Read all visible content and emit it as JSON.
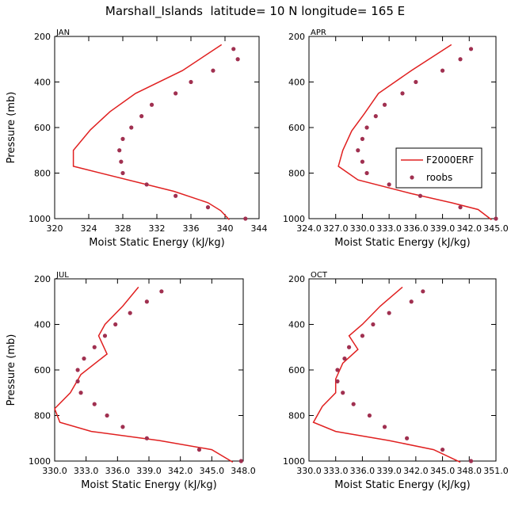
{
  "title": "Marshall_Islands  latitude= 10 N longitude= 165 E",
  "legend": {
    "model": "F2000ERF",
    "obs": "roobs"
  },
  "colors": {
    "line": "#e02020",
    "dots": "#a03050",
    "axis": "#000000"
  },
  "chart_data": [
    {
      "type": "line",
      "month": "JAN",
      "xlabel": "Moist Static Energy (kJ/kg)",
      "ylabel": "Pressure (mb)",
      "xlim": [
        320,
        344
      ],
      "ylim": [
        1000,
        200
      ],
      "xticks": [
        320,
        324,
        328,
        332,
        336,
        340,
        344
      ],
      "xtick_labels": [
        "320",
        "324",
        "328",
        "332",
        "336",
        "340",
        "344"
      ],
      "yticks": [
        200,
        400,
        600,
        800,
        1000
      ],
      "ytick_labels": [
        "200",
        "400",
        "600",
        "800",
        "1000"
      ],
      "series": [
        {
          "name": "F2000ERF",
          "points": [
            [
              339.6,
              236
            ],
            [
              335.0,
              350
            ],
            [
              329.5,
              450
            ],
            [
              326.5,
              530
            ],
            [
              324.2,
              610
            ],
            [
              322.2,
              700
            ],
            [
              322.2,
              770
            ],
            [
              334.0,
              880
            ],
            [
              338.0,
              930
            ],
            [
              339.5,
              965
            ],
            [
              340.5,
              1005
            ]
          ]
        },
        {
          "name": "roobs",
          "points": [
            [
              341.0,
              255
            ],
            [
              341.5,
              300
            ],
            [
              338.6,
              350
            ],
            [
              336.0,
              400
            ],
            [
              334.2,
              450
            ],
            [
              331.4,
              500
            ],
            [
              330.2,
              550
            ],
            [
              329.0,
              600
            ],
            [
              328.0,
              650
            ],
            [
              327.6,
              700
            ],
            [
              327.8,
              750
            ],
            [
              328.0,
              800
            ],
            [
              330.8,
              850
            ],
            [
              334.2,
              900
            ],
            [
              338.0,
              950
            ],
            [
              342.4,
              1000
            ]
          ]
        }
      ]
    },
    {
      "type": "line",
      "month": "APR",
      "xlabel": "Moist Static Energy (kJ/kg)",
      "ylabel": "",
      "xlim": [
        324.0,
        345.0
      ],
      "ylim": [
        1000,
        200
      ],
      "xticks": [
        324.0,
        327.0,
        330.0,
        333.0,
        336.0,
        339.0,
        342.0,
        345.0
      ],
      "xtick_labels": [
        "324.0",
        "327.0",
        "330.0",
        "333.0",
        "336.0",
        "339.0",
        "342.0",
        "345.0"
      ],
      "yticks": [
        200,
        400,
        600,
        800,
        1000
      ],
      "ytick_labels": [
        "200",
        "400",
        "600",
        "800",
        "1000"
      ],
      "series": [
        {
          "name": "F2000ERF",
          "points": [
            [
              340.0,
              236
            ],
            [
              335.5,
              350
            ],
            [
              331.8,
              450
            ],
            [
              330.2,
              540
            ],
            [
              328.8,
              615
            ],
            [
              327.8,
              700
            ],
            [
              327.3,
              770
            ],
            [
              329.5,
              830
            ],
            [
              335.5,
              890
            ],
            [
              340.0,
              930
            ],
            [
              343.0,
              960
            ],
            [
              344.5,
              1005
            ]
          ]
        },
        {
          "name": "roobs",
          "points": [
            [
              342.2,
              255
            ],
            [
              341.0,
              300
            ],
            [
              339.0,
              350
            ],
            [
              336.0,
              400
            ],
            [
              334.5,
              450
            ],
            [
              332.5,
              500
            ],
            [
              331.5,
              550
            ],
            [
              330.5,
              600
            ],
            [
              330.0,
              650
            ],
            [
              329.5,
              700
            ],
            [
              330.0,
              750
            ],
            [
              330.5,
              800
            ],
            [
              333.0,
              850
            ],
            [
              336.5,
              900
            ],
            [
              341.0,
              950
            ],
            [
              345.0,
              1000
            ]
          ]
        }
      ]
    },
    {
      "type": "line",
      "month": "JUL",
      "xlabel": "Moist Static Energy (kJ/kg)",
      "ylabel": "Pressure (mb)",
      "xlim": [
        330.0,
        348.0
      ],
      "ylim": [
        1000,
        200
      ],
      "xticks": [
        330.0,
        333.0,
        336.0,
        339.0,
        342.0,
        345.0,
        348.0
      ],
      "xtick_labels": [
        "330.0",
        "333.0",
        "336.0",
        "339.0",
        "342.0",
        "345.0",
        "348.0"
      ],
      "yticks": [
        200,
        400,
        600,
        800,
        1000
      ],
      "ytick_labels": [
        "200",
        "400",
        "600",
        "800",
        "1000"
      ],
      "series": [
        {
          "name": "F2000ERF",
          "points": [
            [
              338.0,
              236
            ],
            [
              336.5,
              320
            ],
            [
              334.8,
              400
            ],
            [
              334.2,
              450
            ],
            [
              335.0,
              530
            ],
            [
              332.5,
              620
            ],
            [
              331.5,
              700
            ],
            [
              330.0,
              770
            ],
            [
              330.5,
              830
            ],
            [
              333.5,
              870
            ],
            [
              340.0,
              910
            ],
            [
              345.0,
              950
            ],
            [
              347.0,
              1005
            ]
          ]
        },
        {
          "name": "roobs",
          "points": [
            [
              340.2,
              255
            ],
            [
              338.8,
              300
            ],
            [
              337.2,
              350
            ],
            [
              335.8,
              400
            ],
            [
              334.8,
              450
            ],
            [
              333.8,
              500
            ],
            [
              332.8,
              550
            ],
            [
              332.2,
              600
            ],
            [
              332.2,
              650
            ],
            [
              332.5,
              700
            ],
            [
              333.8,
              750
            ],
            [
              335.0,
              800
            ],
            [
              336.5,
              850
            ],
            [
              338.8,
              900
            ],
            [
              343.8,
              950
            ],
            [
              347.8,
              1000
            ]
          ]
        }
      ]
    },
    {
      "type": "line",
      "month": "OCT",
      "xlabel": "Moist Static Energy (kJ/kg)",
      "ylabel": "",
      "xlim": [
        330.0,
        351.0
      ],
      "ylim": [
        1000,
        200
      ],
      "xticks": [
        330.0,
        333.0,
        336.0,
        339.0,
        342.0,
        345.0,
        348.0,
        351.0
      ],
      "xtick_labels": [
        "330.0",
        "333.0",
        "336.0",
        "339.0",
        "342.0",
        "345.0",
        "348.0",
        "351.0"
      ],
      "yticks": [
        200,
        400,
        600,
        800,
        1000
      ],
      "ytick_labels": [
        "200",
        "400",
        "600",
        "800",
        "1000"
      ],
      "series": [
        {
          "name": "F2000ERF",
          "points": [
            [
              340.5,
              236
            ],
            [
              338.0,
              320
            ],
            [
              336.0,
              400
            ],
            [
              334.5,
              450
            ],
            [
              335.5,
              510
            ],
            [
              333.8,
              570
            ],
            [
              333.0,
              640
            ],
            [
              333.0,
              700
            ],
            [
              331.5,
              760
            ],
            [
              330.5,
              830
            ],
            [
              333.0,
              870
            ],
            [
              339.0,
              910
            ],
            [
              344.0,
              950
            ],
            [
              347.0,
              1005
            ]
          ]
        },
        {
          "name": "roobs",
          "points": [
            [
              342.8,
              255
            ],
            [
              341.5,
              300
            ],
            [
              339.0,
              350
            ],
            [
              337.2,
              400
            ],
            [
              336.0,
              450
            ],
            [
              334.5,
              500
            ],
            [
              334.0,
              550
            ],
            [
              333.2,
              600
            ],
            [
              333.2,
              650
            ],
            [
              333.8,
              700
            ],
            [
              335.0,
              750
            ],
            [
              336.8,
              800
            ],
            [
              338.5,
              850
            ],
            [
              341.0,
              900
            ],
            [
              345.0,
              950
            ],
            [
              348.2,
              1000
            ]
          ]
        }
      ]
    }
  ]
}
